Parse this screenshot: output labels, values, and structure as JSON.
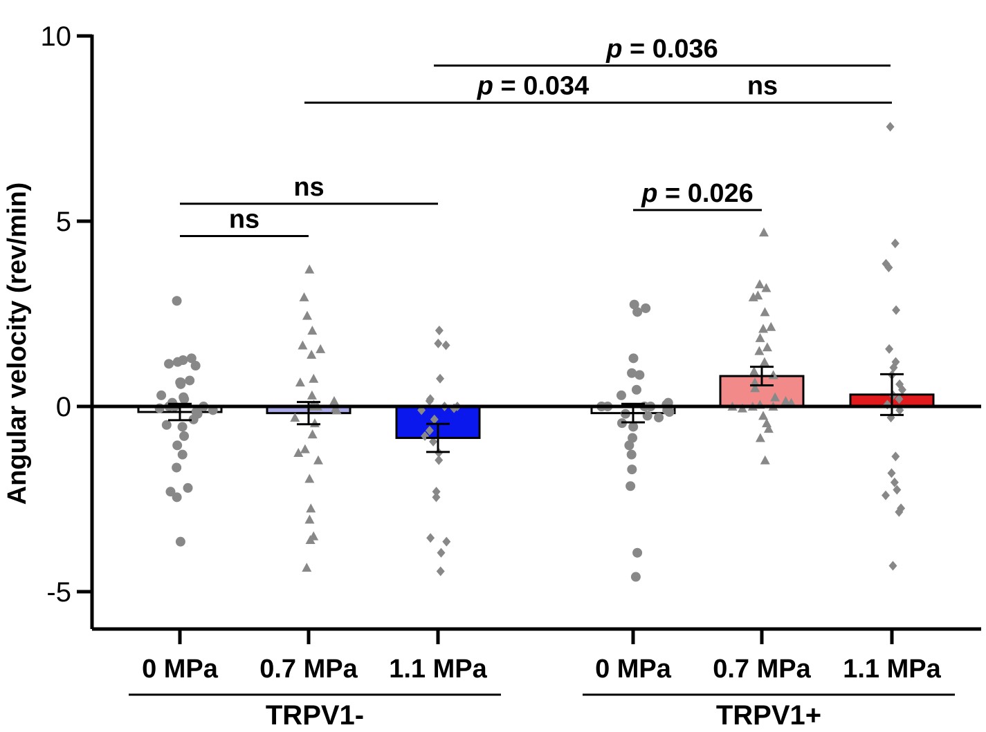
{
  "chart_data": {
    "type": "bar",
    "ylabel": "Angular velocity (rev/min)",
    "xlabel": "",
    "ylim": [
      -6,
      10
    ],
    "yticks": [
      10,
      5,
      0,
      -5
    ],
    "ytick_labels": [
      "10",
      "5",
      "0",
      "-5"
    ],
    "categories": [
      "0 MPa",
      "0.7 MPa",
      "1.1 MPa",
      "0 MPa",
      "0.7 MPa",
      "1.1 MPa"
    ],
    "groups": [
      {
        "label": "TRPV1-",
        "categories": [
          0,
          1,
          2
        ]
      },
      {
        "label": "TRPV1+",
        "categories": [
          3,
          4,
          5
        ]
      }
    ],
    "values": [
      -0.15,
      -0.18,
      -0.85,
      -0.18,
      0.82,
      0.32
    ],
    "sem": [
      0.22,
      0.3,
      0.38,
      0.25,
      0.25,
      0.55
    ],
    "bar_colors": [
      "#ffffff",
      "#a9a9e6",
      "#0a18ee",
      "#ffffff",
      "#f28a8a",
      "#e31a1c"
    ],
    "point_color": "#888888",
    "points": [
      {
        "marker": "circle",
        "values": [
          2.85,
          1.3,
          1.25,
          1.2,
          1.15,
          1.1,
          0.7,
          0.65,
          0.65,
          0.6,
          0.3,
          0.25,
          0.2,
          0.1,
          0.0,
          0.0,
          0.0,
          -0.05,
          -0.1,
          -0.15,
          -0.2,
          -0.35,
          -0.5,
          -0.55,
          -0.8,
          -1.05,
          -1.3,
          -1.65,
          -2.2,
          -2.3,
          -2.45,
          -3.65
        ]
      },
      {
        "marker": "triangle",
        "values": [
          3.7,
          2.95,
          2.45,
          2.05,
          1.65,
          1.55,
          1.4,
          0.75,
          0.65,
          0.3,
          0.15,
          0.05,
          0.0,
          0.0,
          0.0,
          -0.05,
          -0.1,
          -0.3,
          -0.45,
          -0.75,
          -1.15,
          -1.25,
          -1.45,
          -1.95,
          -2.75,
          -3.05,
          -3.5,
          -3.6,
          -4.35
        ]
      },
      {
        "marker": "diamond",
        "values": [
          2.05,
          1.7,
          1.65,
          0.75,
          0.2,
          0.15,
          0.0,
          0.0,
          -0.05,
          -0.1,
          -0.35,
          -0.65,
          -0.8,
          -0.95,
          -1.25,
          -1.45,
          -2.3,
          -2.45,
          -3.65,
          -3.55,
          -3.95,
          -4.45
        ]
      },
      {
        "marker": "circle",
        "values": [
          2.75,
          2.65,
          2.55,
          1.3,
          0.9,
          0.85,
          0.45,
          0.3,
          0.1,
          0.05,
          0.0,
          0.0,
          0.0,
          0.0,
          0.0,
          -0.1,
          -0.15,
          -0.2,
          -0.25,
          -0.3,
          -0.45,
          -0.55,
          -0.85,
          -1.05,
          -1.3,
          -1.7,
          -2.15,
          -3.95,
          -4.6
        ]
      },
      {
        "marker": "triangle",
        "values": [
          4.7,
          3.3,
          3.2,
          3.0,
          2.95,
          2.55,
          2.15,
          2.1,
          1.85,
          1.6,
          1.5,
          1.2,
          0.95,
          0.85,
          0.65,
          0.5,
          0.25,
          0.15,
          0.1,
          0.05,
          0.0,
          0.0,
          0.0,
          -0.05,
          -0.25,
          -0.45,
          -0.6,
          -0.85,
          -1.45
        ]
      },
      {
        "marker": "diamond",
        "values": [
          7.55,
          4.4,
          3.85,
          3.75,
          2.6,
          1.55,
          1.2,
          1.05,
          0.85,
          0.6,
          0.45,
          0.3,
          0.2,
          0.05,
          -0.1,
          -0.3,
          -1.35,
          -1.8,
          -2.05,
          -2.25,
          -2.4,
          -2.75,
          -2.85,
          -4.3
        ]
      }
    ],
    "annotations": [
      {
        "label": "p = 0.036",
        "italic_prefix": "p",
        "rest": " = 0.036",
        "from": 1,
        "to": 5,
        "y": 9.2
      },
      {
        "label": "p = 0.034",
        "italic_prefix": "p",
        "rest": " = 0.034",
        "from": 0,
        "to": 4,
        "y": 8.2
      },
      {
        "label": "ns",
        "from": 3,
        "to": 5,
        "y": 8.2
      },
      {
        "label": "ns",
        "from": 0,
        "to": 2,
        "y": 5.47
      },
      {
        "label": "p = 0.026",
        "italic_prefix": "p",
        "rest": " = 0.026",
        "from": 3,
        "to": 4,
        "y": 5.3
      },
      {
        "label": "ns",
        "from": 0,
        "to": 1,
        "y": 4.6
      }
    ]
  }
}
